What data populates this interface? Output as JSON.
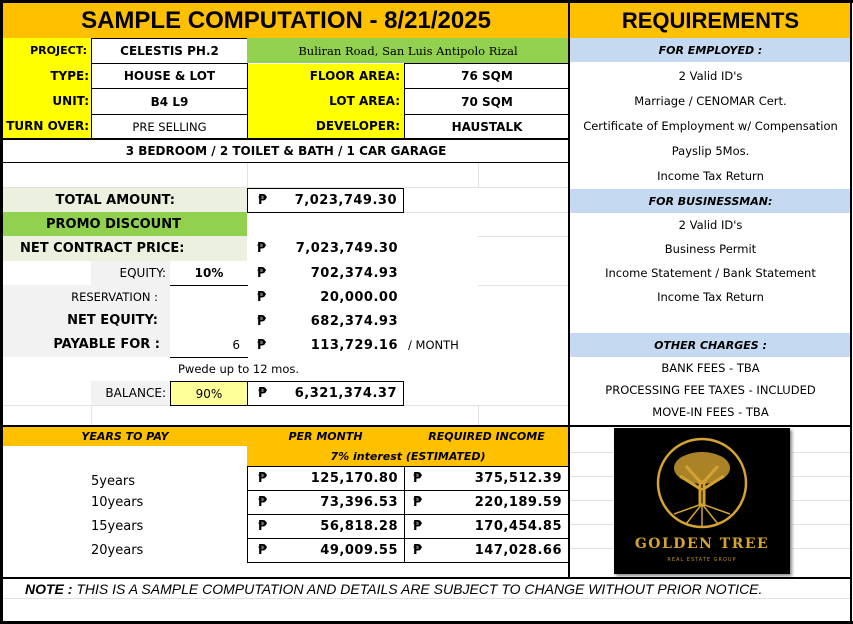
{
  "title": "SAMPLE COMPUTATION - 8/21/2025",
  "details": {
    "project_label": "PROJECT:",
    "project": "CELESTIS PH.2",
    "location": "Buliran Road, San Luis Antipolo Rizal",
    "type_label": "TYPE:",
    "type": "HOUSE & LOT",
    "floor_area_label": "FLOOR AREA:",
    "floor_area": "76 SQM",
    "unit_label": "UNIT:",
    "unit": "B4 L9",
    "lot_area_label": "LOT AREA:",
    "lot_area": "70 SQM",
    "turnover_label": "TURN OVER:",
    "turnover": "PRE SELLING",
    "developer_label": "DEVELOPER:",
    "developer": "HAUSTALK",
    "features": "3 BEDROOM / 2 TOILET & BATH / 1 CAR GARAGE"
  },
  "currency": "₱",
  "computation": {
    "total_amount_label": "TOTAL AMOUNT:",
    "total_amount": "7,023,749.30",
    "promo_label": "PROMO DISCOUNT",
    "ncp_label": "NET CONTRACT PRICE:",
    "ncp": "7,023,749.30",
    "equity_label": "EQUITY:",
    "equity_pct": "10%",
    "equity": "702,374.93",
    "reservation_label": "RESERVATION :",
    "reservation": "20,000.00",
    "net_equity_label": "NET EQUITY:",
    "net_equity": "682,374.93",
    "payable_label": "PAYABLE FOR :",
    "payable_months": "6",
    "payable": "113,729.16",
    "per_month_suffix": "/ MONTH",
    "payable_note": "Pwede up to 12 mos.",
    "balance_label": "BALANCE:",
    "balance_pct": "90%",
    "balance": "6,321,374.37"
  },
  "financing": {
    "headers": [
      "YEARS TO PAY",
      "PER MONTH",
      "REQUIRED INCOME"
    ],
    "interest_note": "7% interest (ESTIMATED)",
    "rows": [
      {
        "years": "5years",
        "per_month": "125,170.80",
        "income": "375,512.39"
      },
      {
        "years": "10years",
        "per_month": "73,396.53",
        "income": "220,189.59"
      },
      {
        "years": "15years",
        "per_month": "56,818.28",
        "income": "170,454.85"
      },
      {
        "years": "20years",
        "per_month": "49,009.55",
        "income": "147,028.66"
      }
    ]
  },
  "requirements": {
    "title": "REQUIREMENTS",
    "employed_header": "FOR EMPLOYED :",
    "employed": [
      "2 Valid ID's",
      "Marriage / CENOMAR Cert.",
      "Certificate of Employment w/ Compensation",
      "Payslip 5Mos.",
      "Income Tax Return"
    ],
    "business_header": "FOR BUSINESSMAN:",
    "business": [
      "2 Valid ID's",
      "Business Permit",
      "Income Statement / Bank Statement",
      "Income Tax Return"
    ],
    "charges_header": "OTHER  CHARGES :",
    "charges": [
      "BANK FEES - TBA",
      "PROCESSING FEE TAXES - INCLUDED",
      "MOVE-IN FEES - TBA"
    ]
  },
  "logo": {
    "name": "GOLDEN TREE",
    "tagline": "REAL ESTATE GROUP",
    "color": "#d4a332"
  },
  "note": {
    "label": "NOTE :",
    "text": " THIS IS A SAMPLE COMPUTATION AND DETAILS ARE SUBJECT TO CHANGE WITHOUT PRIOR NOTICE."
  },
  "colors": {
    "header": "#ffc000",
    "label_yellow": "#ffff00",
    "green": "#92d050",
    "blue": "#c5d9f1"
  }
}
